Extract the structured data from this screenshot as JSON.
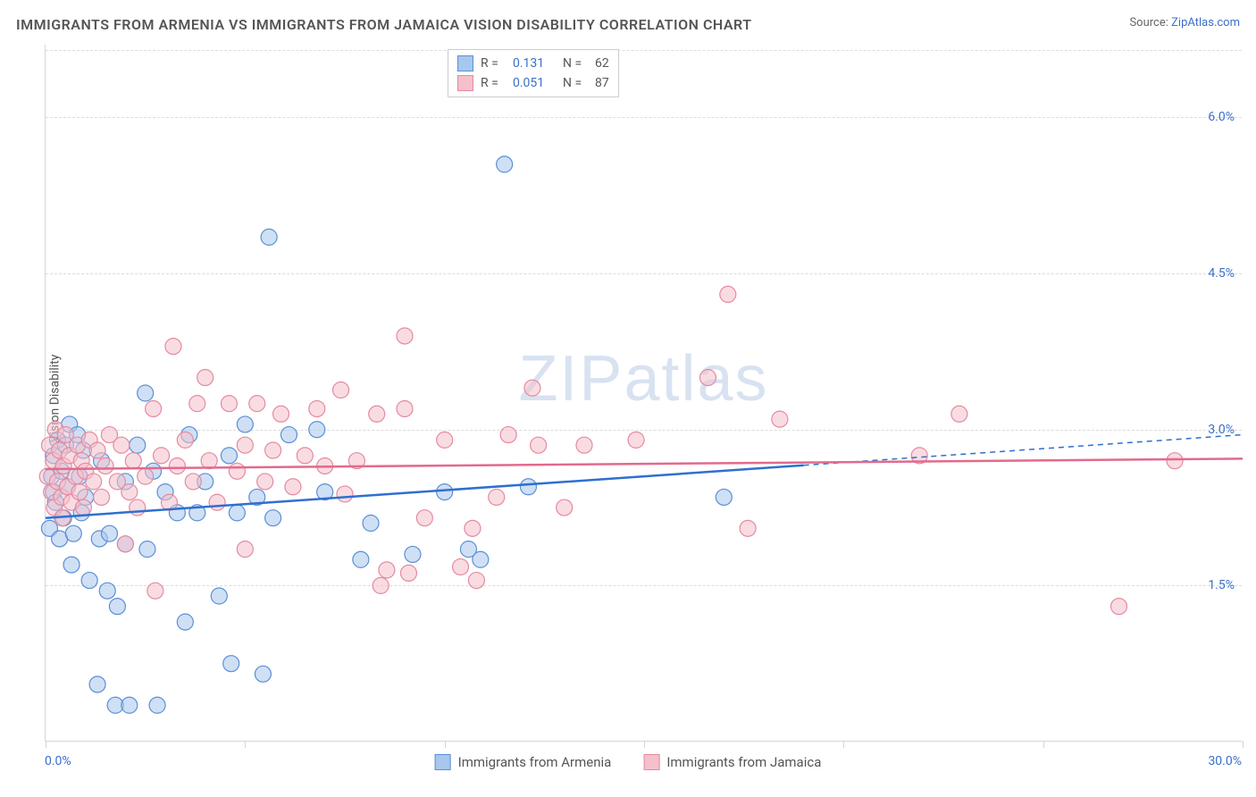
{
  "title": "IMMIGRANTS FROM ARMENIA VS IMMIGRANTS FROM JAMAICA VISION DISABILITY CORRELATION CHART",
  "source_label": "Source:",
  "source_name": "ZipAtlas.com",
  "watermark": "ZIPatlas",
  "chart": {
    "type": "scatter",
    "ylabel": "Vision Disability",
    "xlim": [
      0,
      30
    ],
    "ylim": [
      0,
      6.7
    ],
    "xtick_step": 5,
    "yticks": [
      1.5,
      3.0,
      4.5,
      6.0
    ],
    "ytick_labels": [
      "1.5%",
      "3.0%",
      "4.5%",
      "6.0%"
    ],
    "xlim_labels": [
      "0.0%",
      "30.0%"
    ],
    "background_color": "#ffffff",
    "grid_color": "#dcdcdc",
    "axis_color": "#d5d5d5",
    "marker_radius": 9,
    "marker_opacity": 0.55,
    "line_width": 2.5,
    "series": [
      {
        "name": "Immigrants from Armenia",
        "fill": "#a7c7ed",
        "stroke": "#5a8fd6",
        "line_color": "#2f6fd0",
        "R": "0.131",
        "N": "62",
        "trend": {
          "x1": 0,
          "y1": 2.15,
          "x2": 30,
          "y2": 2.95,
          "solid_until_x": 19
        },
        "points": [
          [
            0.1,
            2.05
          ],
          [
            0.2,
            2.4
          ],
          [
            0.2,
            2.75
          ],
          [
            0.15,
            2.55
          ],
          [
            0.25,
            2.3
          ],
          [
            0.3,
            2.9
          ],
          [
            0.35,
            1.95
          ],
          [
            0.4,
            2.6
          ],
          [
            0.45,
            2.15
          ],
          [
            0.5,
            2.85
          ],
          [
            0.55,
            2.45
          ],
          [
            0.6,
            3.05
          ],
          [
            0.65,
            1.7
          ],
          [
            0.7,
            2.0
          ],
          [
            0.8,
            2.95
          ],
          [
            0.85,
            2.55
          ],
          [
            0.9,
            2.2
          ],
          [
            0.95,
            2.8
          ],
          [
            1.0,
            2.35
          ],
          [
            1.1,
            1.55
          ],
          [
            1.3,
            0.55
          ],
          [
            1.35,
            1.95
          ],
          [
            1.4,
            2.7
          ],
          [
            1.55,
            1.45
          ],
          [
            1.6,
            2.0
          ],
          [
            1.75,
            0.35
          ],
          [
            1.8,
            1.3
          ],
          [
            2.0,
            1.9
          ],
          [
            2.0,
            2.5
          ],
          [
            2.1,
            0.35
          ],
          [
            2.3,
            2.85
          ],
          [
            2.5,
            3.35
          ],
          [
            2.55,
            1.85
          ],
          [
            2.7,
            2.6
          ],
          [
            2.8,
            0.35
          ],
          [
            3.0,
            2.4
          ],
          [
            3.3,
            2.2
          ],
          [
            3.5,
            1.15
          ],
          [
            3.6,
            2.95
          ],
          [
            3.8,
            2.2
          ],
          [
            4.0,
            2.5
          ],
          [
            4.35,
            1.4
          ],
          [
            4.6,
            2.75
          ],
          [
            4.65,
            0.75
          ],
          [
            4.8,
            2.2
          ],
          [
            5.0,
            3.05
          ],
          [
            5.3,
            2.35
          ],
          [
            5.45,
            0.65
          ],
          [
            5.6,
            4.85
          ],
          [
            5.7,
            2.15
          ],
          [
            6.1,
            2.95
          ],
          [
            6.8,
            3.0
          ],
          [
            7.0,
            2.4
          ],
          [
            7.9,
            1.75
          ],
          [
            8.15,
            2.1
          ],
          [
            9.2,
            1.8
          ],
          [
            10.0,
            2.4
          ],
          [
            10.6,
            1.85
          ],
          [
            10.9,
            1.75
          ],
          [
            11.5,
            5.55
          ],
          [
            12.1,
            2.45
          ],
          [
            17.0,
            2.35
          ]
        ]
      },
      {
        "name": "Immigrants from Jamaica",
        "fill": "#f4c0cb",
        "stroke": "#e58aa0",
        "line_color": "#e26a8c",
        "R": "0.051",
        "N": "87",
        "trend": {
          "x1": 0,
          "y1": 2.62,
          "x2": 30,
          "y2": 2.72,
          "solid_until_x": 30
        },
        "points": [
          [
            0.05,
            2.55
          ],
          [
            0.1,
            2.85
          ],
          [
            0.15,
            2.4
          ],
          [
            0.2,
            2.7
          ],
          [
            0.22,
            2.25
          ],
          [
            0.25,
            3.0
          ],
          [
            0.3,
            2.5
          ],
          [
            0.35,
            2.8
          ],
          [
            0.4,
            2.35
          ],
          [
            0.42,
            2.15
          ],
          [
            0.45,
            2.65
          ],
          [
            0.5,
            2.95
          ],
          [
            0.55,
            2.45
          ],
          [
            0.6,
            2.75
          ],
          [
            0.65,
            2.3
          ],
          [
            0.75,
            2.55
          ],
          [
            0.8,
            2.85
          ],
          [
            0.85,
            2.4
          ],
          [
            0.9,
            2.7
          ],
          [
            0.95,
            2.25
          ],
          [
            1.0,
            2.6
          ],
          [
            1.1,
            2.9
          ],
          [
            1.2,
            2.5
          ],
          [
            1.3,
            2.8
          ],
          [
            1.4,
            2.35
          ],
          [
            1.5,
            2.65
          ],
          [
            1.6,
            2.95
          ],
          [
            1.8,
            2.5
          ],
          [
            1.9,
            2.85
          ],
          [
            2.0,
            1.9
          ],
          [
            2.1,
            2.4
          ],
          [
            2.2,
            2.7
          ],
          [
            2.3,
            2.25
          ],
          [
            2.5,
            2.55
          ],
          [
            2.7,
            3.2
          ],
          [
            2.75,
            1.45
          ],
          [
            2.9,
            2.75
          ],
          [
            3.1,
            2.3
          ],
          [
            3.2,
            3.8
          ],
          [
            3.3,
            2.65
          ],
          [
            3.5,
            2.9
          ],
          [
            3.7,
            2.5
          ],
          [
            3.8,
            3.25
          ],
          [
            4.0,
            3.5
          ],
          [
            4.1,
            2.7
          ],
          [
            4.3,
            2.3
          ],
          [
            4.6,
            3.25
          ],
          [
            4.8,
            2.6
          ],
          [
            5.0,
            2.85
          ],
          [
            5.0,
            1.85
          ],
          [
            5.3,
            3.25
          ],
          [
            5.5,
            2.5
          ],
          [
            5.7,
            2.8
          ],
          [
            5.9,
            3.15
          ],
          [
            6.2,
            2.45
          ],
          [
            6.5,
            2.75
          ],
          [
            6.8,
            3.2
          ],
          [
            7.0,
            2.65
          ],
          [
            7.4,
            3.38
          ],
          [
            7.5,
            2.38
          ],
          [
            7.8,
            2.7
          ],
          [
            8.3,
            3.15
          ],
          [
            8.4,
            1.5
          ],
          [
            8.55,
            1.65
          ],
          [
            9.0,
            3.9
          ],
          [
            9.0,
            3.2
          ],
          [
            9.1,
            1.62
          ],
          [
            9.5,
            2.15
          ],
          [
            10.0,
            2.9
          ],
          [
            10.4,
            1.68
          ],
          [
            10.7,
            2.05
          ],
          [
            10.8,
            1.55
          ],
          [
            11.3,
            2.35
          ],
          [
            11.6,
            2.95
          ],
          [
            12.2,
            3.4
          ],
          [
            12.35,
            2.85
          ],
          [
            13.0,
            2.25
          ],
          [
            13.5,
            2.85
          ],
          [
            14.8,
            2.9
          ],
          [
            16.6,
            3.5
          ],
          [
            17.1,
            4.3
          ],
          [
            17.6,
            2.05
          ],
          [
            18.4,
            3.1
          ],
          [
            21.9,
            2.75
          ],
          [
            22.9,
            3.15
          ],
          [
            26.9,
            1.3
          ],
          [
            28.3,
            2.7
          ]
        ]
      }
    ]
  }
}
